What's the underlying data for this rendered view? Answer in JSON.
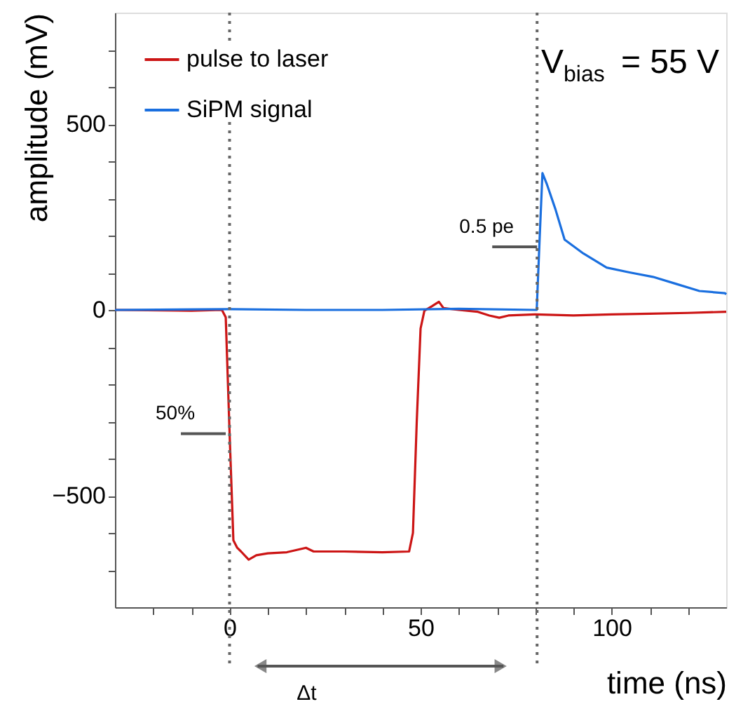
{
  "chart_data": {
    "type": "line",
    "xlabel": "time (ns)",
    "ylabel": "amplitude (mV)",
    "xlim": [
      -30,
      130
    ],
    "ylim": [
      -800,
      800
    ],
    "xticks": [
      {
        "value": -20,
        "label": null
      },
      {
        "value": -10,
        "label": null
      },
      0,
      {
        "value": 10,
        "label": null
      },
      {
        "value": 20,
        "label": null
      },
      {
        "value": 30,
        "label": null
      },
      {
        "value": 40,
        "label": null
      },
      50,
      {
        "value": 60,
        "label": null
      },
      {
        "value": 70,
        "label": null
      },
      {
        "value": 80,
        "label": null
      },
      {
        "value": 90,
        "label": null
      },
      100,
      {
        "value": 110,
        "label": null
      },
      {
        "value": 120,
        "label": null
      }
    ],
    "yticks": [
      {
        "value": -700,
        "label": null
      },
      {
        "value": -600,
        "label": null
      },
      -500,
      {
        "value": -400,
        "label": null
      },
      {
        "value": -300,
        "label": null
      },
      {
        "value": -200,
        "label": null
      },
      {
        "value": -100,
        "label": null
      },
      0,
      {
        "value": 100,
        "label": null
      },
      {
        "value": 200,
        "label": null
      },
      {
        "value": 300,
        "label": null
      },
      {
        "value": 400,
        "label": null
      },
      500,
      {
        "value": 600,
        "label": null
      },
      {
        "value": 700,
        "label": null
      }
    ],
    "grid": false,
    "legend": "top left",
    "marker": "none",
    "line_style": "solid",
    "series": [
      {
        "name": "pulse to laser",
        "color": "#cc1515",
        "x": [
          -30,
          -10,
          -2,
          -1,
          0,
          1,
          2,
          3,
          5,
          7,
          10,
          15,
          20,
          22,
          30,
          40,
          47,
          48,
          49,
          50,
          51,
          53,
          54.8,
          56,
          60,
          65,
          68,
          70.6,
          73,
          80,
          90,
          100,
          110,
          120,
          130
        ],
        "values": [
          0,
          -2,
          0,
          -20,
          -330,
          -620,
          -640,
          -650,
          -672,
          -660,
          -655,
          -652,
          -640,
          -650,
          -650,
          -652,
          -650,
          -600,
          -300,
          -50,
          -2,
          10,
          22,
          5,
          0,
          -5,
          -15,
          -21,
          -15,
          -12,
          -15,
          -12,
          -10,
          -8,
          -5
        ]
      },
      {
        "name": "SiPM signal",
        "color": "#1a6fdf",
        "x": [
          -30,
          0,
          20,
          40,
          60,
          80,
          80.4,
          81.2,
          81.9,
          83,
          85.3,
          87.7,
          92.6,
          98.7,
          104.7,
          110.8,
          116.9,
          123,
          129.7,
          130
        ],
        "values": [
          0,
          2,
          0,
          0,
          3,
          0,
          0,
          200,
          368,
          340,
          271,
          189,
          152,
          114,
          101,
          89,
          70,
          51,
          45,
          42
        ]
      }
    ],
    "ref_lines": [
      {
        "axis": "x",
        "value": 0,
        "color": "#666666",
        "line_style": "dotted"
      },
      {
        "axis": "x",
        "value": 80.5,
        "color": "#666666",
        "line_style": "dotted"
      }
    ],
    "annotations": [
      "V$_{bias}$ = 55 V",
      {
        "text": "0.5 pe",
        "x": 80.5,
        "y": 170
      },
      {
        "text": "50%",
        "x": -1,
        "y": -333
      },
      "Δt"
    ]
  }
}
